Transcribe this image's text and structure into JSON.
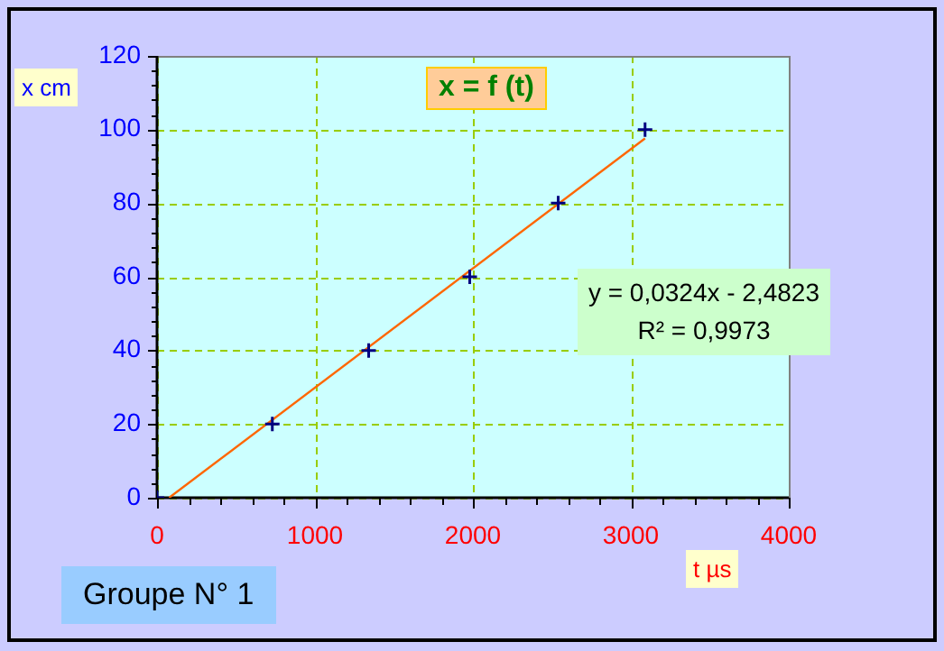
{
  "chart_data": {
    "type": "scatter",
    "title": "x = f (t)",
    "xlabel": "t µs",
    "ylabel": "x cm",
    "xlim": [
      0,
      4000
    ],
    "ylim": [
      0,
      120
    ],
    "xticks": [
      0,
      {
        "value": 200,
        "label": null
      },
      {
        "value": 400,
        "label": null
      },
      {
        "value": 600,
        "label": null
      },
      {
        "value": 800,
        "label": null
      },
      1000,
      {
        "value": 1200,
        "label": null
      },
      {
        "value": 1400,
        "label": null
      },
      {
        "value": 1600,
        "label": null
      },
      {
        "value": 1800,
        "label": null
      },
      2000,
      {
        "value": 2200,
        "label": null
      },
      {
        "value": 2400,
        "label": null
      },
      {
        "value": 2600,
        "label": null
      },
      {
        "value": 2800,
        "label": null
      },
      3000,
      {
        "value": 3200,
        "label": null
      },
      {
        "value": 3400,
        "label": null
      },
      {
        "value": 3600,
        "label": null
      },
      {
        "value": 3800,
        "label": null
      },
      4000
    ],
    "yticks": [
      0,
      {
        "value": 4,
        "label": null
      },
      {
        "value": 8,
        "label": null
      },
      {
        "value": 12,
        "label": null
      },
      {
        "value": 16,
        "label": null
      },
      20,
      {
        "value": 24,
        "label": null
      },
      {
        "value": 28,
        "label": null
      },
      {
        "value": 32,
        "label": null
      },
      {
        "value": 36,
        "label": null
      },
      40,
      {
        "value": 44,
        "label": null
      },
      {
        "value": 48,
        "label": null
      },
      {
        "value": 52,
        "label": null
      },
      {
        "value": 56,
        "label": null
      },
      60,
      {
        "value": 64,
        "label": null
      },
      {
        "value": 68,
        "label": null
      },
      {
        "value": 72,
        "label": null
      },
      {
        "value": 76,
        "label": null
      },
      80,
      {
        "value": 84,
        "label": null
      },
      {
        "value": 88,
        "label": null
      },
      {
        "value": 92,
        "label": null
      },
      {
        "value": 96,
        "label": null
      },
      100,
      {
        "value": 104,
        "label": null
      },
      {
        "value": 108,
        "label": null
      },
      {
        "value": 112,
        "label": null
      },
      {
        "value": 116,
        "label": null
      },
      120
    ],
    "grid": true,
    "legend": false,
    "marker": "cross",
    "series": [
      {
        "color": "#000080",
        "x": [
          0,
          730,
          1340,
          1980,
          2540,
          3090
        ],
        "values": [
          0,
          20,
          40,
          60,
          80,
          100
        ]
      },
      {
        "type": "line",
        "color": "#ff6600",
        "marker": "none",
        "x": [
          76.6,
          3090
        ],
        "values": [
          0,
          97.6
        ]
      }
    ],
    "annotations": [
      "y = 0,0324x - 2,4823",
      "R² = 0,9973",
      "Groupe N° 1"
    ]
  }
}
